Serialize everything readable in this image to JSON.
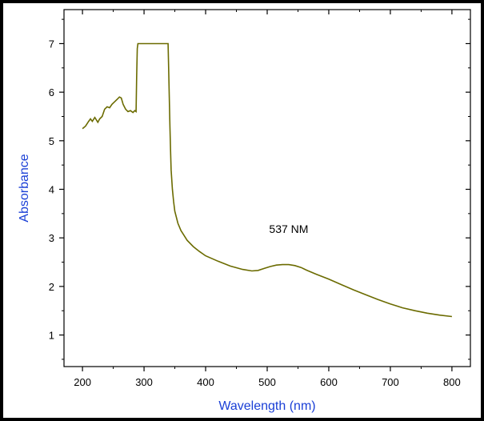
{
  "chart_data": {
    "type": "line",
    "xlabel": "Wavelength (nm)",
    "ylabel": "Absorbance",
    "xlim": [
      170,
      830
    ],
    "ylim": [
      0.35,
      7.7
    ],
    "x_ticks": [
      200,
      300,
      400,
      500,
      600,
      700,
      800
    ],
    "y_ticks": [
      1,
      2,
      3,
      4,
      5,
      6,
      7
    ],
    "grid": false,
    "colors": {
      "series": "#6b6b00",
      "axis_title": "#1a3fd6",
      "axis": "#000000"
    },
    "annotations": [
      {
        "text": "537 NM",
        "x": 535,
        "y": 3.1
      }
    ],
    "series": [
      {
        "x": [
          200,
          205,
          210,
          213,
          216,
          220,
          225,
          228,
          232,
          236,
          240,
          244,
          248,
          252,
          256,
          260,
          263,
          266,
          270,
          274,
          278,
          282,
          285,
          287,
          288,
          289,
          290,
          300,
          310,
          320,
          330,
          339,
          340,
          341,
          342,
          343,
          344,
          346,
          348,
          350,
          355,
          360,
          365,
          370,
          380,
          390,
          400,
          420,
          440,
          460,
          475,
          485,
          495,
          505,
          515,
          525,
          535,
          545,
          555,
          565,
          580,
          600,
          620,
          640,
          660,
          680,
          700,
          720,
          740,
          760,
          780,
          800
        ],
        "y": [
          5.25,
          5.3,
          5.4,
          5.45,
          5.4,
          5.48,
          5.38,
          5.45,
          5.5,
          5.65,
          5.7,
          5.68,
          5.75,
          5.8,
          5.85,
          5.9,
          5.88,
          5.75,
          5.65,
          5.6,
          5.62,
          5.58,
          5.62,
          5.6,
          6.3,
          6.9,
          7.0,
          7.0,
          7.0,
          7.0,
          7.0,
          7.0,
          6.5,
          5.9,
          5.3,
          4.8,
          4.4,
          4.0,
          3.75,
          3.55,
          3.3,
          3.15,
          3.05,
          2.95,
          2.82,
          2.72,
          2.63,
          2.52,
          2.42,
          2.35,
          2.32,
          2.33,
          2.37,
          2.41,
          2.44,
          2.45,
          2.45,
          2.43,
          2.39,
          2.33,
          2.25,
          2.15,
          2.04,
          1.93,
          1.83,
          1.73,
          1.64,
          1.56,
          1.5,
          1.45,
          1.41,
          1.38
        ]
      }
    ]
  }
}
